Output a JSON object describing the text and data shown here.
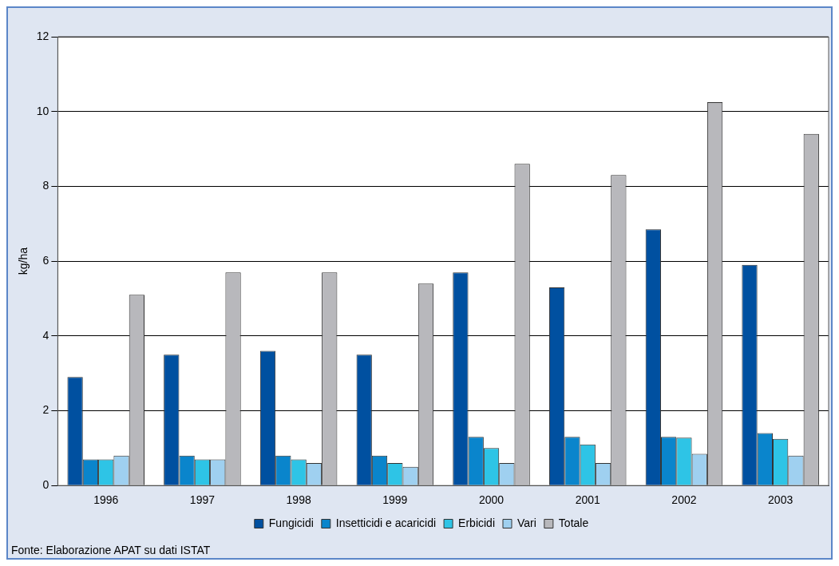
{
  "chart_data": {
    "type": "bar",
    "ylabel": "kg/ha",
    "categories": [
      "1996",
      "1997",
      "1998",
      "1999",
      "2000",
      "2001",
      "2002",
      "2003"
    ],
    "series": [
      {
        "name": "Fungicidi",
        "color": "#0050a0",
        "values": [
          2.9,
          3.5,
          3.6,
          3.5,
          5.7,
          5.3,
          6.85,
          5.9
        ]
      },
      {
        "name": "Insetticidi e acaricidi",
        "color": "#0a85cc",
        "values": [
          0.7,
          0.8,
          0.8,
          0.8,
          1.3,
          1.3,
          1.3,
          1.4
        ]
      },
      {
        "name": "Erbicidi",
        "color": "#2ec4e6",
        "values": [
          0.7,
          0.7,
          0.7,
          0.6,
          1.0,
          1.1,
          1.28,
          1.25
        ]
      },
      {
        "name": "Vari",
        "color": "#9fd0f0",
        "values": [
          0.8,
          0.7,
          0.6,
          0.5,
          0.6,
          0.6,
          0.85,
          0.8
        ]
      },
      {
        "name": "Totale",
        "color": "#b8b8bc",
        "values": [
          5.1,
          5.7,
          5.7,
          5.4,
          8.6,
          8.3,
          10.25,
          9.4
        ]
      }
    ],
    "ylim": [
      0,
      12
    ],
    "yticks": [
      0,
      2,
      4,
      6,
      8,
      10,
      12
    ],
    "grid": "y",
    "legend": "bottom",
    "annotations": [
      "Fonte: Elaborazione APAT su dati ISTAT"
    ]
  }
}
